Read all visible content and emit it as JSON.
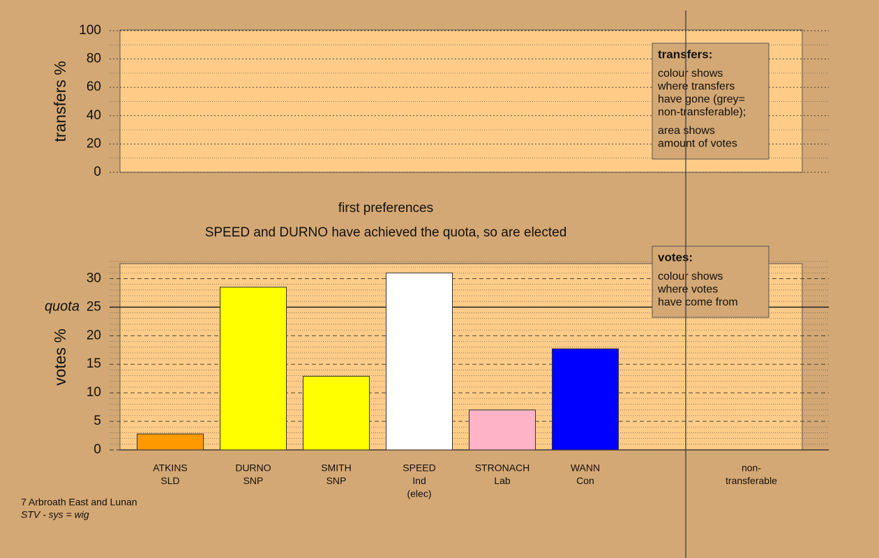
{
  "chart_data": [
    {
      "type": "bar",
      "ylabel": "transfers %",
      "ylim": [
        0,
        100
      ],
      "yticks": [
        0,
        20,
        40,
        60,
        80,
        100
      ],
      "grid_step": 10,
      "major_grid": "dotted",
      "note": {
        "title": "transfers:",
        "paragraphs": [
          [
            "colour shows",
            "where transfers",
            "have gone (grey=",
            "non-transferable);"
          ],
          [
            "area shows",
            "amount of votes"
          ]
        ]
      }
    },
    {
      "type": "bar",
      "title": "first preferences",
      "subtitle": "SPEED and DURNO have achieved the quota, so are elected",
      "ylabel": "votes %",
      "ylim": [
        0,
        32.5
      ],
      "yticks": [
        0,
        5,
        10,
        15,
        20,
        25,
        30
      ],
      "grid_step": 1,
      "major_grid": "dashed",
      "quota": {
        "value": 25,
        "label": "quota"
      },
      "categories": [
        [
          "ATKINS",
          "SLD"
        ],
        [
          "DURNO",
          "SNP"
        ],
        [
          "SMITH",
          "SNP"
        ],
        [
          "SPEED",
          "Ind",
          "(elec)"
        ],
        [
          "STRONACH",
          "Lab"
        ],
        [
          "WANN",
          "Con"
        ],
        null,
        [
          "non-",
          "transferable"
        ]
      ],
      "values": [
        2.8,
        28.5,
        12.9,
        31,
        7,
        17.7,
        null,
        null
      ],
      "colors": [
        "#ff9900",
        "#ffff00",
        "#ffff00",
        "#ffffff",
        "#ffb3c6",
        "#0000ff",
        null,
        null
      ],
      "note": {
        "title": "votes:",
        "paragraphs": [
          [
            "colour shows",
            "where votes",
            "have come from"
          ]
        ]
      }
    }
  ],
  "footer": [
    "7 Arbroath East and Lunan",
    "STV - sys = wig"
  ]
}
